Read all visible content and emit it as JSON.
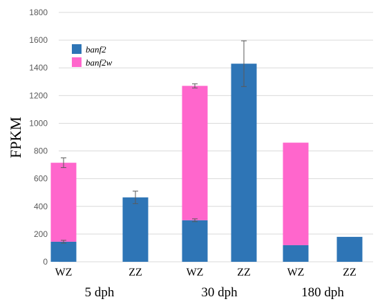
{
  "chart_data": {
    "type": "bar",
    "stacked": true,
    "ylabel": "FPKM",
    "ylim": [
      0,
      1800
    ],
    "yticks": [
      0,
      200,
      400,
      600,
      800,
      1000,
      1200,
      1400,
      1600,
      1800
    ],
    "grid": true,
    "legend_position": "top-left",
    "categories": [
      "WZ",
      "ZZ",
      "WZ",
      "ZZ",
      "WZ",
      "ZZ"
    ],
    "groups": [
      {
        "label": "5 dph",
        "categories": [
          0,
          1
        ]
      },
      {
        "label": "30 dph",
        "categories": [
          2,
          3
        ]
      },
      {
        "label": "180 dph",
        "categories": [
          4,
          5
        ]
      }
    ],
    "series": [
      {
        "name": "banf2",
        "color": "#2e75b6",
        "values": [
          145,
          465,
          300,
          1430,
          120,
          180
        ],
        "error": [
          10,
          45,
          10,
          165,
          null,
          null
        ]
      },
      {
        "name": "banf2w",
        "color": "#ff66cc",
        "values": [
          570,
          0,
          970,
          0,
          740,
          0
        ],
        "error": [
          35,
          null,
          15,
          null,
          null,
          null
        ]
      }
    ]
  }
}
